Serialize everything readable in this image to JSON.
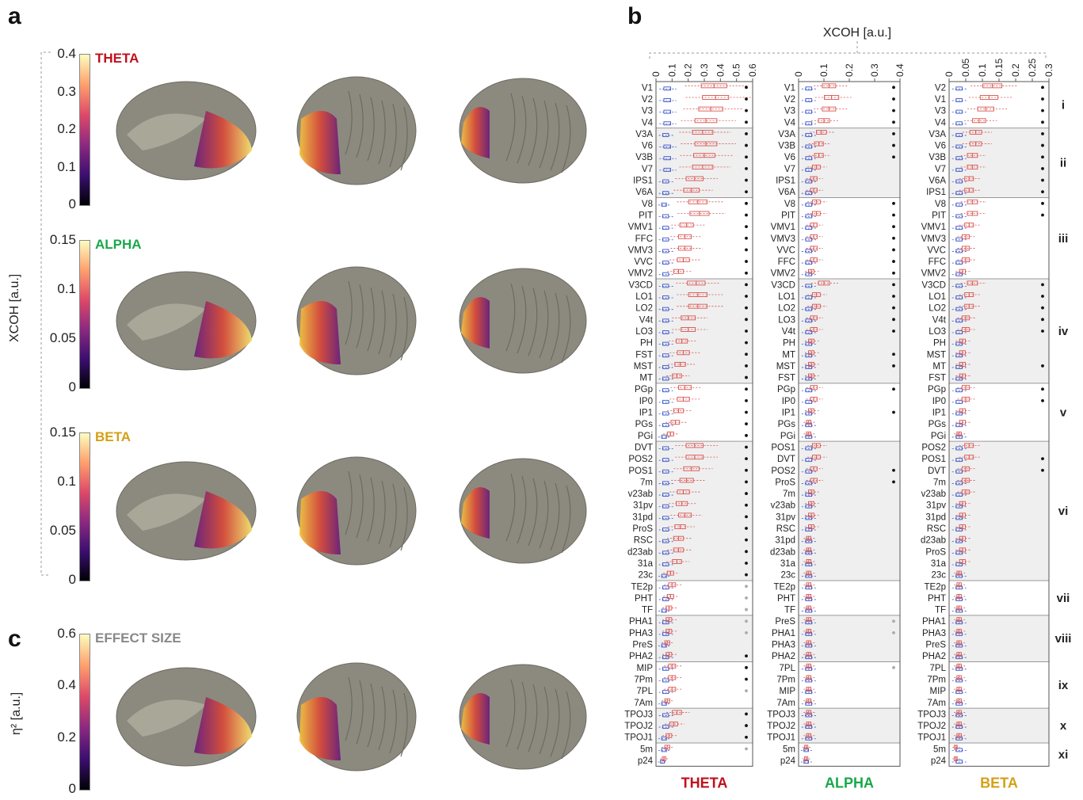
{
  "panels": {
    "a": "a",
    "b": "b",
    "c": "c"
  },
  "colorbars": [
    {
      "label": "THETA",
      "color": "#c0101c",
      "ticks": [
        "0.4",
        "0.3",
        "0.2",
        "0.1",
        "0"
      ]
    },
    {
      "label": "ALPHA",
      "color": "#18a84a",
      "ticks": [
        "0.15",
        "0.1",
        "0.05",
        "0"
      ]
    },
    {
      "label": "BETA",
      "color": "#d4a017",
      "ticks": [
        "0.15",
        "0.1",
        "0.05",
        "0"
      ]
    },
    {
      "label": "EFFECT SIZE",
      "color": "#888888",
      "ticks": [
        "0.6",
        "0.4",
        "0.2",
        "0"
      ]
    }
  ],
  "xcoh_axis_label": "XCOH [a.u.]",
  "eta_axis_label": "η² [a.u.]",
  "top_axis_label": "XCOH [a.u.]",
  "colors": {
    "theta": "#c0101c",
    "alpha": "#18a84a",
    "beta": "#d4a017",
    "red_box": "#d9534f",
    "blue_box": "#3a55c8",
    "shade": "#efefef"
  },
  "chart_data": [
    {
      "type": "box",
      "title": "THETA",
      "xlim": [
        0,
        0.6
      ],
      "xticks": [
        "0",
        "0.1",
        "0.2",
        "0.3",
        "0.4",
        "0.5",
        "0.6"
      ],
      "rows": [
        "V1",
        "V2",
        "V3",
        "V4",
        "V3A",
        "V6",
        "V3B",
        "V7",
        "IPS1",
        "V6A",
        "V8",
        "PIT",
        "VMV1",
        "FFC",
        "VMV3",
        "VVC",
        "VMV2",
        "V3CD",
        "LO1",
        "LO2",
        "V4t",
        "LO3",
        "PH",
        "FST",
        "MST",
        "MT",
        "PGp",
        "IP0",
        "IP1",
        "PGs",
        "PGi",
        "DVT",
        "POS2",
        "POS1",
        "7m",
        "v23ab",
        "31pv",
        "31pd",
        "ProS",
        "RSC",
        "d23ab",
        "31a",
        "23c",
        "TE2p",
        "PHT",
        "TF",
        "PHA1",
        "PHA3",
        "PreS",
        "PHA2",
        "MIP",
        "7Pm",
        "7PL",
        "7Am",
        "TPOJ3",
        "TPOJ2",
        "TPOJ1",
        "5m",
        "p24"
      ],
      "red_median": [
        0.36,
        0.37,
        0.34,
        0.31,
        0.29,
        0.31,
        0.3,
        0.29,
        0.24,
        0.22,
        0.26,
        0.27,
        0.19,
        0.18,
        0.18,
        0.17,
        0.14,
        0.25,
        0.26,
        0.26,
        0.2,
        0.2,
        0.16,
        0.17,
        0.15,
        0.13,
        0.18,
        0.17,
        0.14,
        0.12,
        0.09,
        0.24,
        0.24,
        0.22,
        0.19,
        0.17,
        0.16,
        0.18,
        0.15,
        0.14,
        0.14,
        0.13,
        0.09,
        0.1,
        0.09,
        0.08,
        0.08,
        0.08,
        0.07,
        0.08,
        0.1,
        0.1,
        0.1,
        0.07,
        0.13,
        0.11,
        0.08,
        0.07,
        0.05
      ],
      "blue_median": [
        0.07,
        0.07,
        0.07,
        0.07,
        0.06,
        0.07,
        0.07,
        0.07,
        0.06,
        0.06,
        0.05,
        0.06,
        0.06,
        0.06,
        0.06,
        0.06,
        0.06,
        0.06,
        0.06,
        0.06,
        0.06,
        0.06,
        0.06,
        0.06,
        0.06,
        0.06,
        0.06,
        0.06,
        0.06,
        0.06,
        0.05,
        0.06,
        0.06,
        0.06,
        0.06,
        0.06,
        0.06,
        0.06,
        0.06,
        0.06,
        0.06,
        0.06,
        0.05,
        0.06,
        0.06,
        0.05,
        0.06,
        0.06,
        0.05,
        0.06,
        0.06,
        0.06,
        0.06,
        0.05,
        0.06,
        0.06,
        0.05,
        0.05,
        0.04
      ],
      "sig": [
        1,
        1,
        1,
        1,
        1,
        1,
        1,
        1,
        1,
        1,
        1,
        1,
        1,
        1,
        1,
        1,
        1,
        1,
        1,
        1,
        1,
        1,
        1,
        1,
        1,
        1,
        1,
        1,
        1,
        1,
        1,
        1,
        1,
        1,
        1,
        1,
        1,
        1,
        1,
        1,
        1,
        1,
        1,
        2,
        2,
        2,
        2,
        2,
        0,
        1,
        1,
        1,
        2,
        0,
        1,
        1,
        1,
        2,
        0
      ]
    },
    {
      "type": "box",
      "title": "ALPHA",
      "xlim": [
        0,
        0.4
      ],
      "xticks": [
        "0",
        "0.1",
        "0.2",
        "0.3",
        "0.4"
      ],
      "rows": [
        "V1",
        "V2",
        "V3",
        "V4",
        "V3A",
        "V3B",
        "V6",
        "V7",
        "IPS1",
        "V6A",
        "V8",
        "PIT",
        "VMV1",
        "VMV3",
        "VVC",
        "FFC",
        "VMV2",
        "V3CD",
        "LO1",
        "LO2",
        "LO3",
        "V4t",
        "PH",
        "MT",
        "MST",
        "FST",
        "PGp",
        "IP0",
        "IP1",
        "PGs",
        "PGi",
        "POS1",
        "DVT",
        "POS2",
        "ProS",
        "7m",
        "v23ab",
        "31pv",
        "RSC",
        "31pd",
        "d23ab",
        "31a",
        "23c",
        "TE2p",
        "PHT",
        "TF",
        "PreS",
        "PHA1",
        "PHA3",
        "PHA2",
        "7PL",
        "7Pm",
        "MIP",
        "7Am",
        "TPOJ3",
        "TPOJ2",
        "TPOJ1",
        "5m",
        "p24"
      ],
      "red_median": [
        0.12,
        0.13,
        0.12,
        0.1,
        0.09,
        0.08,
        0.08,
        0.07,
        0.06,
        0.06,
        0.07,
        0.07,
        0.06,
        0.06,
        0.06,
        0.06,
        0.05,
        0.1,
        0.07,
        0.07,
        0.06,
        0.06,
        0.05,
        0.05,
        0.05,
        0.05,
        0.06,
        0.06,
        0.05,
        0.04,
        0.04,
        0.07,
        0.07,
        0.06,
        0.06,
        0.05,
        0.05,
        0.05,
        0.05,
        0.04,
        0.04,
        0.04,
        0.04,
        0.04,
        0.04,
        0.04,
        0.04,
        0.04,
        0.04,
        0.04,
        0.04,
        0.04,
        0.04,
        0.04,
        0.04,
        0.04,
        0.04,
        0.03,
        0.03
      ],
      "blue_median": [
        0.04,
        0.04,
        0.04,
        0.04,
        0.04,
        0.04,
        0.04,
        0.04,
        0.04,
        0.04,
        0.04,
        0.04,
        0.04,
        0.04,
        0.04,
        0.04,
        0.04,
        0.04,
        0.04,
        0.04,
        0.04,
        0.04,
        0.04,
        0.04,
        0.04,
        0.04,
        0.04,
        0.04,
        0.04,
        0.04,
        0.04,
        0.04,
        0.04,
        0.04,
        0.04,
        0.04,
        0.04,
        0.04,
        0.04,
        0.04,
        0.04,
        0.04,
        0.04,
        0.04,
        0.04,
        0.04,
        0.04,
        0.04,
        0.04,
        0.04,
        0.04,
        0.04,
        0.04,
        0.04,
        0.04,
        0.04,
        0.04,
        0.03,
        0.03
      ],
      "sig": [
        1,
        1,
        1,
        1,
        1,
        1,
        1,
        0,
        0,
        0,
        1,
        1,
        1,
        1,
        1,
        1,
        1,
        1,
        1,
        1,
        1,
        1,
        0,
        1,
        1,
        0,
        1,
        0,
        1,
        0,
        0,
        0,
        0,
        1,
        1,
        0,
        0,
        0,
        0,
        0,
        0,
        0,
        0,
        0,
        0,
        0,
        2,
        2,
        0,
        0,
        2,
        0,
        0,
        0,
        0,
        0,
        0,
        0,
        0
      ]
    },
    {
      "type": "box",
      "title": "BETA",
      "xlim": [
        0,
        0.3
      ],
      "xticks": [
        "0",
        "0.05",
        "0.1",
        "0.15",
        "0.2",
        "0.25",
        "0.3"
      ],
      "rows": [
        "V2",
        "V1",
        "V3",
        "V4",
        "V3A",
        "V6",
        "V3B",
        "V7",
        "V6A",
        "IPS1",
        "V8",
        "PIT",
        "VMV1",
        "VMV3",
        "VVC",
        "FFC",
        "VMV2",
        "V3CD",
        "LO1",
        "LO2",
        "V4t",
        "LO3",
        "PH",
        "MST",
        "MT",
        "FST",
        "PGp",
        "IP0",
        "IP1",
        "PGs",
        "PGi",
        "POS2",
        "POS1",
        "DVT",
        "7m",
        "v23ab",
        "31pv",
        "31pd",
        "RSC",
        "d23ab",
        "ProS",
        "31a",
        "23c",
        "TE2p",
        "PHT",
        "TF",
        "PHA1",
        "PHA3",
        "PreS",
        "PHA2",
        "7PL",
        "7Pm",
        "MIP",
        "7Am",
        "TPOJ3",
        "TPOJ2",
        "TPOJ1",
        "5m",
        "p24"
      ],
      "red_median": [
        0.13,
        0.12,
        0.11,
        0.09,
        0.08,
        0.08,
        0.07,
        0.07,
        0.06,
        0.06,
        0.07,
        0.07,
        0.06,
        0.05,
        0.05,
        0.05,
        0.04,
        0.07,
        0.06,
        0.06,
        0.05,
        0.05,
        0.04,
        0.04,
        0.04,
        0.04,
        0.05,
        0.05,
        0.04,
        0.04,
        0.03,
        0.06,
        0.06,
        0.05,
        0.05,
        0.05,
        0.04,
        0.04,
        0.04,
        0.04,
        0.04,
        0.04,
        0.03,
        0.03,
        0.03,
        0.03,
        0.03,
        0.03,
        0.03,
        0.03,
        0.03,
        0.03,
        0.03,
        0.03,
        0.03,
        0.03,
        0.03,
        0.02,
        0.02
      ],
      "blue_median": [
        0.03,
        0.03,
        0.03,
        0.03,
        0.03,
        0.03,
        0.03,
        0.03,
        0.03,
        0.03,
        0.03,
        0.03,
        0.03,
        0.03,
        0.03,
        0.03,
        0.03,
        0.03,
        0.03,
        0.03,
        0.03,
        0.03,
        0.03,
        0.03,
        0.03,
        0.03,
        0.03,
        0.03,
        0.03,
        0.03,
        0.03,
        0.03,
        0.03,
        0.03,
        0.03,
        0.03,
        0.03,
        0.03,
        0.03,
        0.03,
        0.03,
        0.03,
        0.03,
        0.03,
        0.03,
        0.03,
        0.03,
        0.03,
        0.03,
        0.03,
        0.03,
        0.03,
        0.03,
        0.03,
        0.03,
        0.03,
        0.03,
        0.03,
        0.03
      ],
      "sig": [
        1,
        1,
        1,
        1,
        1,
        1,
        1,
        1,
        1,
        1,
        1,
        1,
        0,
        0,
        0,
        0,
        0,
        1,
        1,
        1,
        1,
        1,
        0,
        0,
        1,
        0,
        1,
        1,
        0,
        0,
        0,
        0,
        1,
        1,
        0,
        0,
        0,
        0,
        0,
        0,
        0,
        0,
        0,
        0,
        0,
        0,
        0,
        0,
        0,
        0,
        0,
        0,
        0,
        0,
        0,
        0,
        0,
        0,
        0
      ]
    }
  ],
  "groups": [
    {
      "label": "i",
      "start": 0,
      "end": 4
    },
    {
      "label": "ii",
      "start": 4,
      "end": 10
    },
    {
      "label": "iii",
      "start": 10,
      "end": 17
    },
    {
      "label": "iv",
      "start": 17,
      "end": 26
    },
    {
      "label": "v",
      "start": 26,
      "end": 31
    },
    {
      "label": "vi",
      "start": 31,
      "end": 43
    },
    {
      "label": "vii",
      "start": 43,
      "end": 46
    },
    {
      "label": "viii",
      "start": 46,
      "end": 50
    },
    {
      "label": "ix",
      "start": 50,
      "end": 54
    },
    {
      "label": "x",
      "start": 54,
      "end": 57
    },
    {
      "label": "xi",
      "start": 57,
      "end": 59
    }
  ],
  "bottom_labels": [
    "THETA",
    "ALPHA",
    "BETA"
  ]
}
